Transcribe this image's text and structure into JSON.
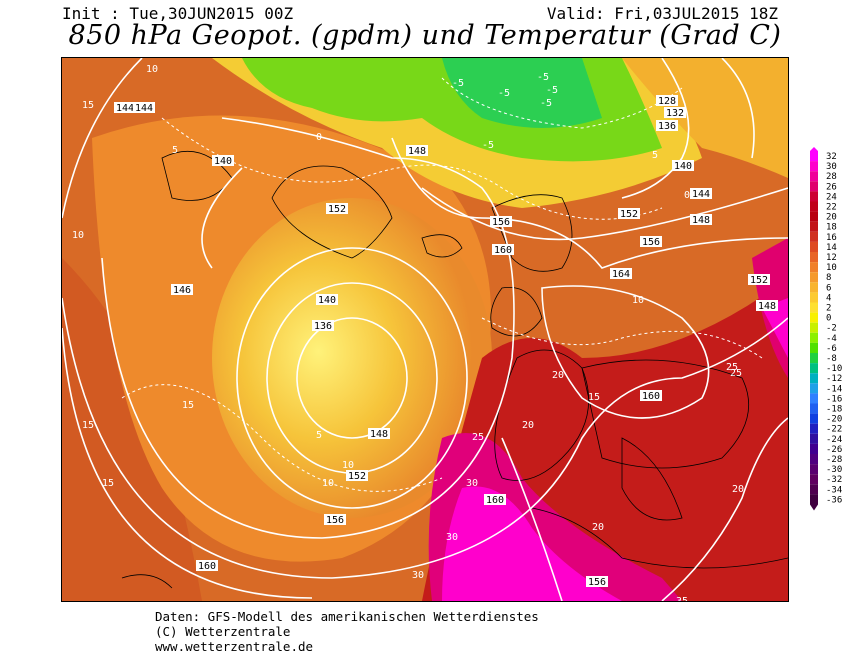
{
  "header": {
    "init": "Init : Tue,30JUN2015 00Z",
    "valid": "Valid: Fri,03JUL2015 18Z",
    "title": "850 hPa Geopot. (gpdm) und Temperatur (Grad C)"
  },
  "legend": {
    "values": [
      "32",
      "30",
      "28",
      "26",
      "24",
      "22",
      "20",
      "18",
      "16",
      "14",
      "12",
      "10",
      "8",
      "6",
      "4",
      "2",
      "0",
      "-2",
      "-4",
      "-6",
      "-8",
      "-10",
      "-12",
      "-14",
      "-16",
      "-18",
      "-20",
      "-22",
      "-24",
      "-26",
      "-28",
      "-30",
      "-32",
      "-34",
      "-36"
    ],
    "colors": [
      "#ff00ff",
      "#ff00cc",
      "#f0009a",
      "#e0006e",
      "#cc0033",
      "#c0001a",
      "#b80010",
      "#c21418",
      "#d03020",
      "#de4a22",
      "#e86426",
      "#f0802a",
      "#f59a2c",
      "#f8b42e",
      "#fcca30",
      "#fee032",
      "#f8f000",
      "#c8f000",
      "#8cf000",
      "#50e000",
      "#20d040",
      "#00c080",
      "#00b0c0",
      "#20a0e8",
      "#3080ff",
      "#2060f0",
      "#1040e0",
      "#2020c0",
      "#3010a0",
      "#400090",
      "#500080",
      "#5a0070",
      "#600060",
      "#500050",
      "#400040"
    ]
  },
  "contours": {
    "geopotential": [
      "144",
      "148",
      "152",
      "136",
      "140",
      "156",
      "160",
      "128",
      "132",
      "146",
      "148",
      "152",
      "156",
      "160",
      "164",
      "140",
      "144",
      "148",
      "152",
      "156",
      "160",
      "156",
      "152",
      "148",
      "144",
      "140",
      "136",
      "160"
    ],
    "temperature": [
      "10",
      "15",
      "5",
      "0",
      "-5",
      "-5",
      "-5",
      "-5",
      "-5",
      "-5",
      "5",
      "10",
      "15",
      "20",
      "25",
      "30",
      "35",
      "10",
      "15",
      "20",
      "25",
      "30",
      "15",
      "20",
      "10",
      "5",
      "0",
      "10",
      "15",
      "20",
      "25",
      "30"
    ]
  },
  "footer": {
    "line1": "Daten: GFS-Modell des amerikanischen Wetterdienstes",
    "line2": "(C) Wetterzentrale",
    "line3": "www.wetterzentrale.de"
  }
}
